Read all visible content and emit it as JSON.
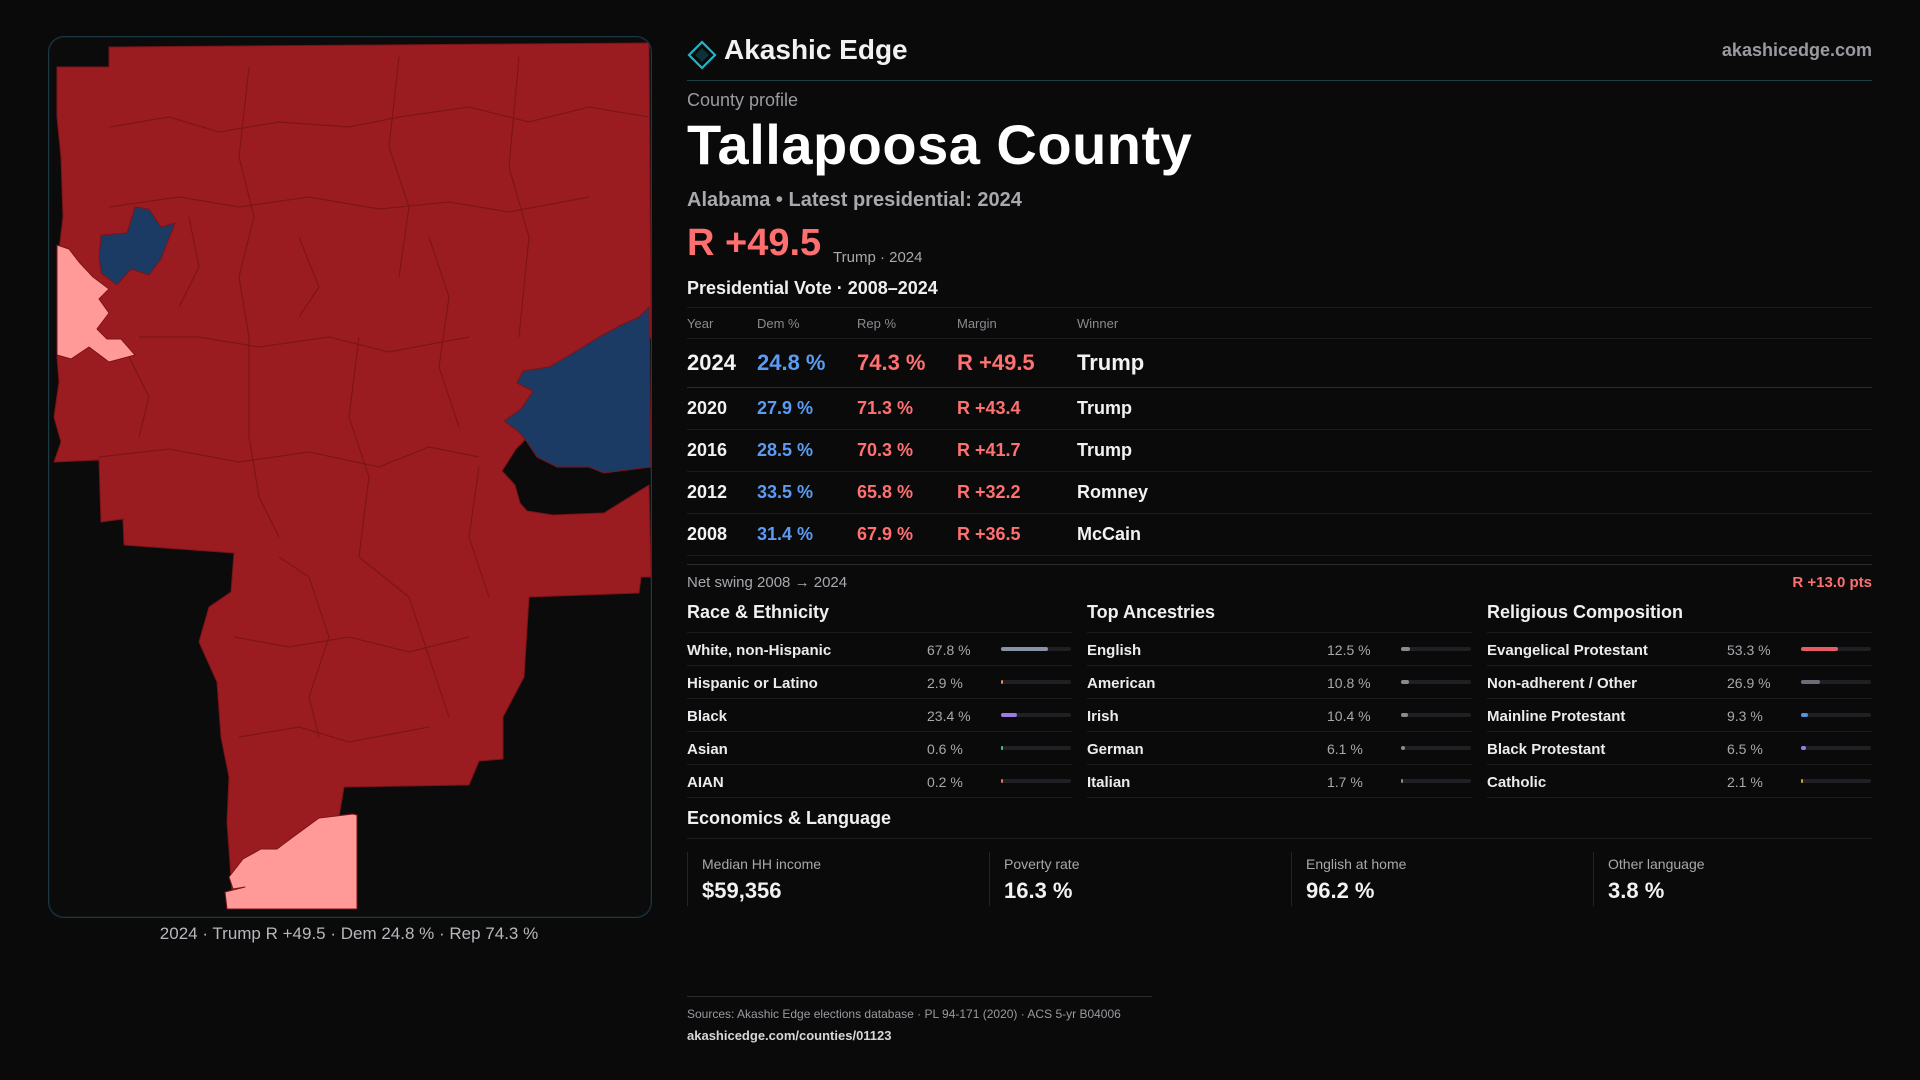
{
  "brand": {
    "name": "Akashic Edge",
    "url": "akashicedge.com"
  },
  "header": {
    "kicker": "County profile",
    "title": "Tallapoosa County",
    "subtitle": "Alabama • Latest presidential: 2024",
    "headline_margin": "R +49.5",
    "headline_note": "Trump · 2024"
  },
  "vote": {
    "title": "Presidential Vote · 2008–2024",
    "columns": [
      "Year",
      "Dem %",
      "Rep %",
      "Margin",
      "Winner"
    ],
    "rows": [
      {
        "year": "2024",
        "dem": "24.8 %",
        "rep": "74.3 %",
        "margin": "R +49.5",
        "winner": "Trump"
      },
      {
        "year": "2020",
        "dem": "27.9 %",
        "rep": "71.3 %",
        "margin": "R +43.4",
        "winner": "Trump"
      },
      {
        "year": "2016",
        "dem": "28.5 %",
        "rep": "70.3 %",
        "margin": "R +41.7",
        "winner": "Trump"
      },
      {
        "year": "2012",
        "dem": "33.5 %",
        "rep": "65.8 %",
        "margin": "R +32.2",
        "winner": "Romney"
      },
      {
        "year": "2008",
        "dem": "31.4 %",
        "rep": "67.9 %",
        "margin": "R +36.5",
        "winner": "McCain"
      }
    ],
    "swing_label": "Net swing 2008 → 2024",
    "swing_value": "R +13.0 pts"
  },
  "race": {
    "title": "Race & Ethnicity",
    "items": [
      {
        "label": "White, non-Hispanic",
        "pct": "67.8 %",
        "value": 67.8,
        "color": "#8a93a6"
      },
      {
        "label": "Hispanic or Latino",
        "pct": "2.9 %",
        "value": 2.9,
        "color": "#e0895a"
      },
      {
        "label": "Black",
        "pct": "23.4 %",
        "value": 23.4,
        "color": "#9b7be6"
      },
      {
        "label": "Asian",
        "pct": "0.6 %",
        "value": 0.6,
        "color": "#4bbf9a"
      },
      {
        "label": "AIAN",
        "pct": "0.2 %",
        "value": 0.2,
        "color": "#d9785a"
      }
    ]
  },
  "ancestry": {
    "title": "Top Ancestries",
    "items": [
      {
        "label": "English",
        "pct": "12.5 %",
        "value": 12.5,
        "color": "#8a8a92"
      },
      {
        "label": "American",
        "pct": "10.8 %",
        "value": 10.8,
        "color": "#8a8a92"
      },
      {
        "label": "Irish",
        "pct": "10.4 %",
        "value": 10.4,
        "color": "#8a8a92"
      },
      {
        "label": "German",
        "pct": "6.1 %",
        "value": 6.1,
        "color": "#8a8a92"
      },
      {
        "label": "Italian",
        "pct": "1.7 %",
        "value": 1.7,
        "color": "#8a8a92"
      }
    ]
  },
  "religion": {
    "title": "Religious Composition",
    "items": [
      {
        "label": "Evangelical Protestant",
        "pct": "53.3 %",
        "value": 53.3,
        "color": "#e85a66"
      },
      {
        "label": "Non-adherent / Other",
        "pct": "26.9 %",
        "value": 26.9,
        "color": "#6b6e78"
      },
      {
        "label": "Mainline Protestant",
        "pct": "9.3 %",
        "value": 9.3,
        "color": "#5b8fe0"
      },
      {
        "label": "Black Protestant",
        "pct": "6.5 %",
        "value": 6.5,
        "color": "#9b7be6"
      },
      {
        "label": "Catholic",
        "pct": "2.1 %",
        "value": 2.1,
        "color": "#c8a040"
      }
    ]
  },
  "economics": {
    "title": "Economics & Language",
    "cells": [
      {
        "label": "Median HH income",
        "value": "$59,356"
      },
      {
        "label": "Poverty rate",
        "value": "16.3 %"
      },
      {
        "label": "English at home",
        "value": "96.2 %"
      },
      {
        "label": "Other language",
        "value": "3.8 %"
      }
    ]
  },
  "map": {
    "caption": "2024 · Trump R +49.5 · Dem 24.8 % · Rep 74.3 %",
    "colors": {
      "strong_rep": "#9b1c20",
      "lean_rep": "#ff9a98",
      "dem": "#1b3a64",
      "border": "#7a1418"
    }
  },
  "sources": {
    "line1": "Sources: Akashic Edge elections database · PL 94-171 (2020) · ACS 5-yr B04006",
    "line2": "akashicedge.com/counties/01123"
  }
}
